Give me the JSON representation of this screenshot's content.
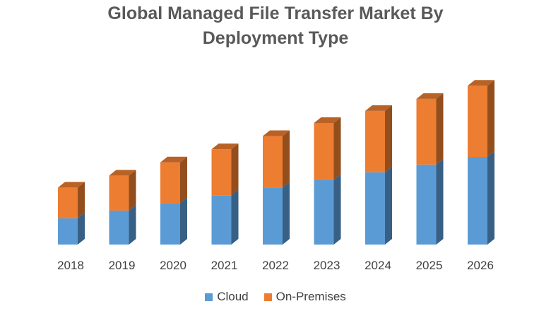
{
  "chart_data": {
    "type": "bar",
    "stacked": true,
    "three_d": true,
    "title": [
      "Global Managed File Transfer Market By",
      "Deployment Type"
    ],
    "categories": [
      "2018",
      "2019",
      "2020",
      "2021",
      "2022",
      "2023",
      "2024",
      "2025",
      "2026"
    ],
    "series": [
      {
        "name": "Cloud",
        "color": "#5B9BD5",
        "values": [
          24,
          31,
          38,
          45,
          52,
          59,
          66,
          73,
          80
        ]
      },
      {
        "name": "On-Premises",
        "color": "#ED7D31",
        "values": [
          28,
          32,
          37,
          42,
          47,
          52,
          56,
          60,
          65
        ]
      }
    ],
    "ylim": [
      0,
      200
    ],
    "grid": false,
    "legend": "bottom"
  }
}
